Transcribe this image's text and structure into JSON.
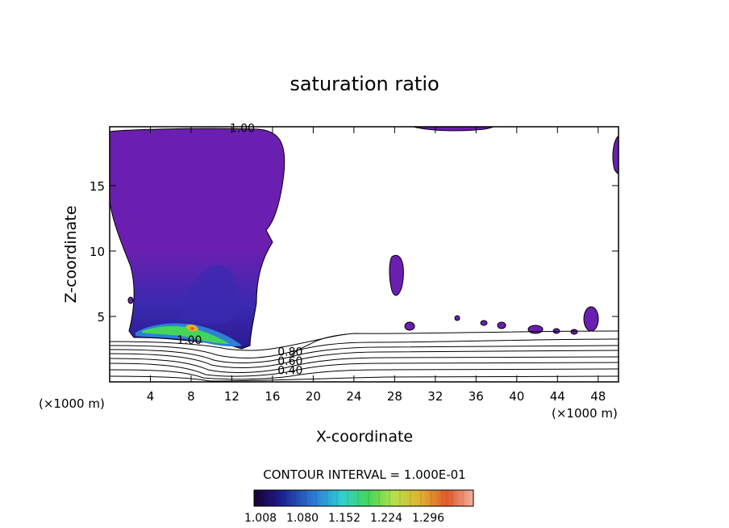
{
  "chart_data": {
    "type": "contour",
    "title": "saturation ratio",
    "xlabel": "X-coordinate",
    "ylabel": "Z-coordinate",
    "x_unit_left": "(×1000 m)",
    "x_unit_right": "(×1000 m)",
    "xlim": [
      0,
      50
    ],
    "ylim": [
      0,
      19.5
    ],
    "x_ticks": [
      4,
      8,
      12,
      16,
      20,
      24,
      28,
      32,
      36,
      40,
      44,
      48
    ],
    "y_ticks": [
      5,
      10,
      15
    ],
    "contour_interval_text": "CONTOUR INTERVAL = 1.000E-01",
    "colorbar": {
      "labels": [
        "1.008",
        "1.080",
        "1.152",
        "1.224",
        "1.296"
      ],
      "colors": [
        "#1a0033",
        "#1d1d8c",
        "#2d7fd8",
        "#2fd0d0",
        "#43d65a",
        "#b8e04a",
        "#e0b030",
        "#e05a2a",
        "#f0b0a0"
      ]
    },
    "contour_labels": [
      {
        "text": "1.00",
        "x": 11.8,
        "z": 19.4
      },
      {
        "text": "1.00",
        "x": 6.6,
        "z": 3.2
      },
      {
        "text": "0.80",
        "x": 16.5,
        "z": 2.3
      },
      {
        "text": "0.60",
        "x": 16.5,
        "z": 1.6
      },
      {
        "text": "0.40",
        "x": 16.5,
        "z": 0.9
      }
    ],
    "fill_color": "#6b1fb0"
  }
}
